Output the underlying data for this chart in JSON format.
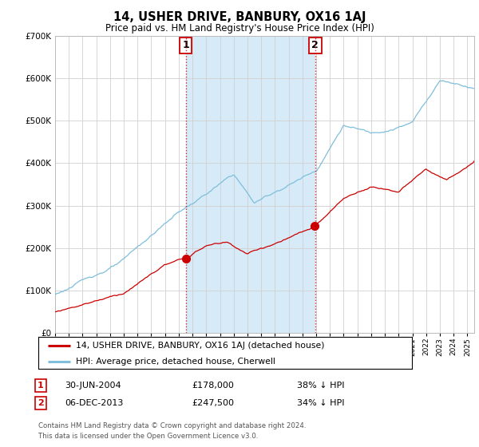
{
  "title": "14, USHER DRIVE, BANBURY, OX16 1AJ",
  "subtitle": "Price paid vs. HM Land Registry's House Price Index (HPI)",
  "ylim": [
    0,
    700000
  ],
  "xlim_start": 1995.0,
  "xlim_end": 2025.5,
  "hpi_color": "#7fbfdc",
  "hpi_fill_color": "#d6eaf8",
  "price_color": "#cc0000",
  "transaction1_x": 2004.5,
  "transaction1_y": 178000,
  "transaction2_x": 2013.92,
  "transaction2_y": 247500,
  "transaction1_date": "30-JUN-2004",
  "transaction1_price": "£178,000",
  "transaction1_label": "38% ↓ HPI",
  "transaction2_date": "06-DEC-2013",
  "transaction2_price": "£247,500",
  "transaction2_label": "34% ↓ HPI",
  "legend_house_label": "14, USHER DRIVE, BANBURY, OX16 1AJ (detached house)",
  "legend_hpi_label": "HPI: Average price, detached house, Cherwell",
  "footnote": "Contains HM Land Registry data © Crown copyright and database right 2024.\nThis data is licensed under the Open Government Licence v3.0.",
  "background_color": "#ffffff",
  "grid_color": "#d0d0d0"
}
